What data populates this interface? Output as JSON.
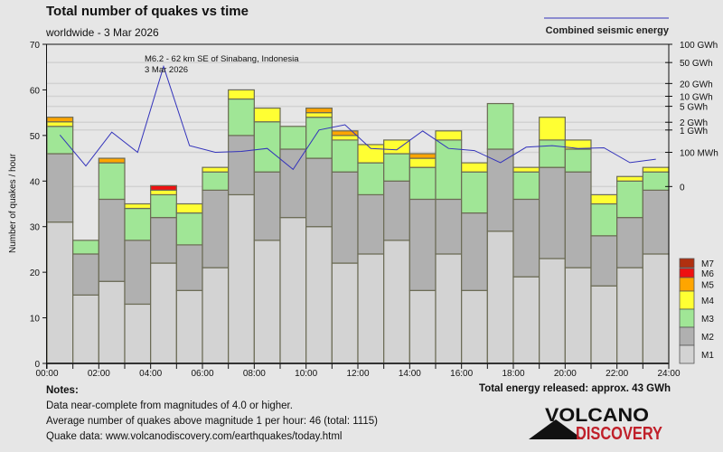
{
  "chart_data": {
    "type": "bar",
    "stacked": true,
    "title": "Total number of quakes vs time",
    "subtitle": "worldwide -  3 Mar 2026",
    "xlabel": "",
    "ylabel": "Number of quakes / hour",
    "ylim": [
      0,
      70
    ],
    "yticks": [
      0,
      10,
      20,
      30,
      40,
      50,
      60,
      70
    ],
    "xlim": [
      0,
      24
    ],
    "xtick_labels": [
      "00:00",
      "02:00",
      "04:00",
      "06:00",
      "08:00",
      "10:00",
      "12:00",
      "14:00",
      "16:00",
      "18:00",
      "20:00",
      "22:00",
      "24:00"
    ],
    "grid": true,
    "categories": [
      "00",
      "01",
      "02",
      "03",
      "04",
      "05",
      "06",
      "07",
      "08",
      "09",
      "10",
      "11",
      "12",
      "13",
      "14",
      "15",
      "16",
      "17",
      "18",
      "19",
      "20",
      "21",
      "22",
      "23"
    ],
    "series": [
      {
        "name": "M1",
        "color": "#d3d3d3",
        "values": [
          31,
          15,
          18,
          13,
          22,
          16,
          21,
          37,
          27,
          32,
          30,
          22,
          24,
          27,
          16,
          24,
          16,
          29,
          19,
          23,
          21,
          17,
          21,
          24
        ]
      },
      {
        "name": "M2",
        "color": "#b0b0b0",
        "values": [
          15,
          9,
          18,
          14,
          10,
          10,
          17,
          13,
          15,
          15,
          15,
          20,
          13,
          13,
          20,
          12,
          17,
          18,
          17,
          20,
          21,
          11,
          11,
          14
        ]
      },
      {
        "name": "M3",
        "color": "#a0e696",
        "values": [
          6,
          3,
          8,
          7,
          5,
          7,
          4,
          8,
          11,
          5,
          9,
          7,
          7,
          6,
          7,
          13,
          9,
          10,
          6,
          6,
          5,
          7,
          8,
          4
        ]
      },
      {
        "name": "M4",
        "color": "#ffff33",
        "values": [
          1,
          0,
          0,
          1,
          1,
          2,
          1,
          2,
          3,
          0,
          1,
          1,
          4,
          3,
          2,
          2,
          2,
          0,
          1,
          5,
          2,
          2,
          1,
          1
        ]
      },
      {
        "name": "M5",
        "color": "#ffa500",
        "values": [
          1,
          0,
          1,
          0,
          0,
          0,
          0,
          0,
          0,
          0,
          1,
          1,
          0,
          0,
          1,
          0,
          0,
          0,
          0,
          0,
          0,
          0,
          0,
          0
        ]
      },
      {
        "name": "M6",
        "color": "#ee1111",
        "values": [
          0,
          0,
          0,
          0,
          1,
          0,
          0,
          0,
          0,
          0,
          0,
          0,
          0,
          0,
          0,
          0,
          0,
          0,
          0,
          0,
          0,
          0,
          0,
          0
        ]
      },
      {
        "name": "M7",
        "color": "#b03010",
        "values": [
          0,
          0,
          0,
          0,
          0,
          0,
          0,
          0,
          0,
          0,
          0,
          0,
          0,
          0,
          0,
          0,
          0,
          0,
          0,
          0,
          0,
          0,
          0,
          0
        ]
      }
    ],
    "legend": {
      "placement": "right-bottom",
      "entries": [
        "M7",
        "M6",
        "M5",
        "M4",
        "M3",
        "M2",
        "M1"
      ]
    },
    "energy_series": {
      "name": "Combined seismic energy",
      "color": "#3333bb",
      "axis_ticks": [
        "100 GWh",
        "50 GWh",
        "20 GWh",
        "10 GWh",
        "5 GWh",
        "2 GWh",
        "1 GWh",
        "100 MWh",
        "0"
      ],
      "axis_tick_values_gwh": [
        100,
        50,
        20,
        10,
        5,
        2,
        1,
        0.1,
        0
      ],
      "x_hours": [
        0.5,
        1.5,
        2.5,
        3.5,
        4.5,
        5.5,
        6.5,
        7.5,
        8.5,
        9.5,
        10.5,
        11.5,
        12.5,
        13.5,
        14.5,
        15.5,
        16.5,
        17.5,
        18.5,
        19.5,
        20.5,
        21.5,
        22.5,
        23.5
      ],
      "values_gwh": [
        0.6,
        0.06,
        0.8,
        0.1,
        42,
        0.2,
        0.1,
        0.11,
        0.15,
        0.05,
        1.0,
        1.6,
        0.15,
        0.13,
        0.9,
        0.15,
        0.12,
        0.07,
        0.17,
        0.2,
        0.15,
        0.16,
        0.07,
        0.08
      ]
    },
    "annotations": [
      {
        "text": "M6.2 - 62 km SE of Sinabang, Indonesia",
        "hour": 4.5
      },
      {
        "text": "3 Mar 2026",
        "hour": 4.5
      }
    ]
  },
  "energy_legend_label": "Combined seismic energy",
  "notes": {
    "heading": "Notes:",
    "lines": [
      "Data near-complete from magnitudes of 4.0 or higher.",
      "Average number of quakes above magnitude 1 per hour: 46 (total: 1115)",
      "Quake data: www.volcanodiscovery.com/earthquakes/today.html"
    ]
  },
  "total_energy": "Total energy released: approx. 43 GWh",
  "logo": {
    "line1": "VOLCANO",
    "line2": "DISCOVERY",
    "color1": "#111111",
    "color2": "#c0202a"
  }
}
